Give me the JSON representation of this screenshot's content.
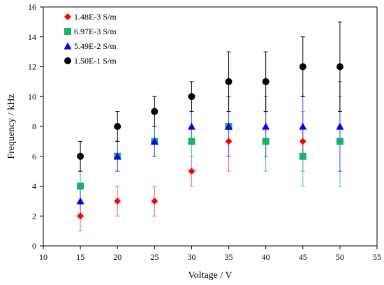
{
  "chart_data": {
    "type": "scatter",
    "title": "",
    "xlabel": "Voltage / V",
    "ylabel": "Frequency / kHz",
    "xlim": [
      10,
      55
    ],
    "ylim": [
      0,
      16
    ],
    "xticks": [
      10,
      15,
      20,
      25,
      30,
      35,
      40,
      45,
      50,
      55
    ],
    "yticks": [
      0,
      2,
      4,
      6,
      8,
      10,
      12,
      14,
      16
    ],
    "grid": false,
    "legend_position": "top-left",
    "x": [
      15,
      20,
      25,
      30,
      35,
      40,
      45,
      50
    ],
    "series": [
      {
        "name": "1.48E-3 S/m",
        "marker": "diamond",
        "color": "#ff0000",
        "error_color": "#ff6666",
        "points": [
          {
            "x": 15,
            "y": 2,
            "lo": 1,
            "hi": 3
          },
          {
            "x": 20,
            "y": 3,
            "lo": 2,
            "hi": 4
          },
          {
            "x": 25,
            "y": 3,
            "lo": 2,
            "hi": 4
          },
          {
            "x": 30,
            "y": 5,
            "lo": 4,
            "hi": 6
          },
          {
            "x": 35,
            "y": 7,
            "lo": 5,
            "hi": 9
          },
          {
            "x": 45,
            "y": 7,
            "lo": 5,
            "hi": 9
          }
        ]
      },
      {
        "name": "6.97E-3 S/m",
        "marker": "square",
        "color": "#18b26b",
        "error_color": "#33cc99",
        "points": [
          {
            "x": 15,
            "y": 4,
            "lo": 3,
            "hi": 5
          },
          {
            "x": 20,
            "y": 6,
            "lo": 5,
            "hi": 7
          },
          {
            "x": 25,
            "y": 7,
            "lo": 6,
            "hi": 8
          },
          {
            "x": 30,
            "y": 7,
            "lo": 6,
            "hi": 8
          },
          {
            "x": 35,
            "y": 8,
            "lo": 6,
            "hi": 10
          },
          {
            "x": 40,
            "y": 7,
            "lo": 5,
            "hi": 9
          },
          {
            "x": 45,
            "y": 6,
            "lo": 4,
            "hi": 8
          },
          {
            "x": 50,
            "y": 7,
            "lo": 4,
            "hi": 10
          }
        ]
      },
      {
        "name": "5.49E-2 S/m",
        "marker": "triangle",
        "color": "#0000ff",
        "error_color": "#4a4aff",
        "points": [
          {
            "x": 15,
            "y": 3,
            "lo": 2,
            "hi": 4
          },
          {
            "x": 20,
            "y": 6,
            "lo": 5,
            "hi": 7
          },
          {
            "x": 25,
            "y": 7,
            "lo": 6,
            "hi": 8
          },
          {
            "x": 30,
            "y": 8,
            "lo": 7,
            "hi": 9
          },
          {
            "x": 35,
            "y": 8,
            "lo": 6,
            "hi": 10
          },
          {
            "x": 40,
            "y": 8,
            "lo": 6,
            "hi": 10
          },
          {
            "x": 45,
            "y": 8,
            "lo": 6,
            "hi": 10
          },
          {
            "x": 50,
            "y": 8,
            "lo": 5,
            "hi": 11
          }
        ]
      },
      {
        "name": "1.50E-1 S/m",
        "marker": "circle",
        "color": "#000000",
        "error_color": "#000000",
        "points": [
          {
            "x": 15,
            "y": 6,
            "lo": 5,
            "hi": 7
          },
          {
            "x": 20,
            "y": 8,
            "lo": 7,
            "hi": 9
          },
          {
            "x": 25,
            "y": 9,
            "lo": 8,
            "hi": 10
          },
          {
            "x": 30,
            "y": 10,
            "lo": 9,
            "hi": 11
          },
          {
            "x": 35,
            "y": 11,
            "lo": 9,
            "hi": 13
          },
          {
            "x": 40,
            "y": 11,
            "lo": 9,
            "hi": 13
          },
          {
            "x": 45,
            "y": 12,
            "lo": 10,
            "hi": 14
          },
          {
            "x": 50,
            "y": 12,
            "lo": 9,
            "hi": 15
          }
        ]
      }
    ]
  }
}
